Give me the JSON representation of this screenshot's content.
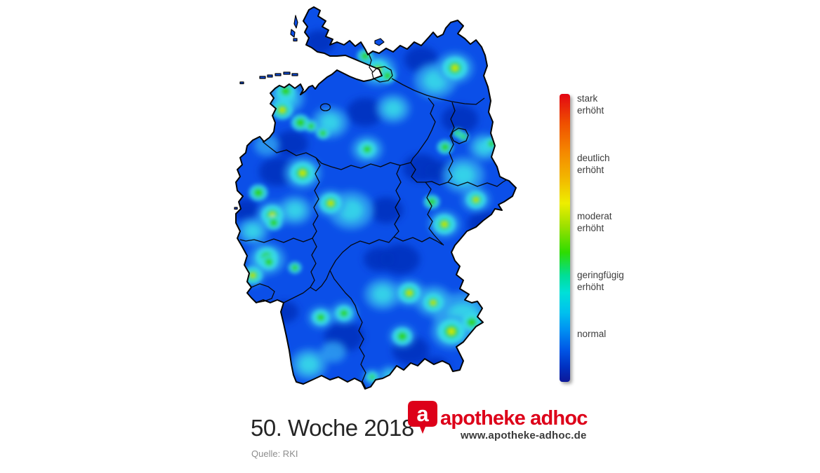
{
  "legend": {
    "levels": [
      {
        "label": "stark\nerhöht",
        "color": "#e30613"
      },
      {
        "label": "deutlich\nerhöht",
        "color": "#f2bb00"
      },
      {
        "label": "moderat\nerhöht",
        "color": "#5bdc00"
      },
      {
        "label": "geringfügig\nerhöht",
        "color": "#00dfca"
      },
      {
        "label": "normal",
        "color": "#0071ee"
      }
    ],
    "gradient_stops": [
      "#e30613 0%",
      "#ef4e00 10%",
      "#f58700 20%",
      "#f2bb00 30%",
      "#eeee00 38%",
      "#9ce000 46%",
      "#2edc00 55%",
      "#00de96 63%",
      "#00e0d8 69%",
      "#00c0ee 76%",
      "#0090f2 82%",
      "#0055e6 89%",
      "#0030c0 95%",
      "#0d1898 100%"
    ]
  },
  "footer": {
    "week_label": "50. Woche 2018",
    "source": "Quelle: RKI"
  },
  "brand": {
    "icon_letter": "a",
    "name": "apotheke adhoc",
    "url": "www.apotheke-adhoc.de",
    "red": "#dd0019"
  },
  "map": {
    "region": "Deutschland",
    "base_color": "#0b4fe8",
    "outline_color": "#050505",
    "dark_color": "#0531bf",
    "light_color": "#2f9ff0",
    "cyan_color": "#37dce8",
    "green_color": "#2ed41c",
    "yellow_color": "#e6ee00",
    "dark_patches": [
      [
        137,
        52,
        22
      ],
      [
        282,
        77,
        24
      ],
      [
        202,
        152,
        26
      ],
      [
        337,
        162,
        26
      ],
      [
        97,
        197,
        24
      ],
      [
        77,
        237,
        26
      ],
      [
        32,
        292,
        20
      ],
      [
        282,
        232,
        26
      ],
      [
        307,
        237,
        20
      ],
      [
        232,
        292,
        24
      ],
      [
        252,
        362,
        28
      ],
      [
        222,
        362,
        22
      ],
      [
        372,
        312,
        24
      ],
      [
        172,
        472,
        28
      ],
      [
        267,
        492,
        26
      ],
      [
        87,
        437,
        20
      ],
      [
        302,
        517,
        20
      ]
    ],
    "light_patches": [
      [
        302,
        107,
        30,
        1
      ],
      [
        242,
        147,
        24,
        1
      ],
      [
        152,
        167,
        26,
        1
      ],
      [
        89,
        132,
        26,
        1
      ],
      [
        205,
        205,
        22,
        1
      ],
      [
        342,
        242,
        30,
        1
      ],
      [
        372,
        202,
        22,
        1
      ],
      [
        182,
        292,
        32,
        1
      ],
      [
        102,
        292,
        24,
        1
      ],
      [
        42,
        322,
        22,
        1
      ],
      [
        62,
        362,
        26,
        1
      ],
      [
        227,
        412,
        26,
        1
      ],
      [
        342,
        445,
        42,
        1
      ],
      [
        300,
        422,
        26,
        1
      ],
      [
        122,
        512,
        26,
        1
      ],
      [
        157,
        494,
        18,
        0
      ],
      [
        42,
        385,
        16,
        1
      ],
      [
        330,
        89,
        26,
        1
      ],
      [
        220,
        92,
        26,
        1
      ],
      [
        113,
        239,
        26,
        1
      ],
      [
        153,
        282,
        22,
        1
      ],
      [
        70,
        299,
        22,
        1
      ],
      [
        315,
        312,
        22,
        1
      ],
      [
        325,
        465,
        28,
        1
      ],
      [
        265,
        410,
        22,
        1
      ],
      [
        139,
        445,
        18,
        1
      ],
      [
        172,
        439,
        18,
        1
      ],
      [
        360,
        277,
        20,
        1
      ],
      [
        255,
        472,
        18,
        1
      ],
      [
        62,
        199,
        18,
        0
      ],
      [
        237,
        527,
        14,
        1
      ],
      [
        212,
        530,
        12,
        1
      ]
    ],
    "hotspots": [
      [
        220,
        92,
        8,
        1
      ],
      [
        202,
        72,
        6,
        0
      ],
      [
        234,
        100,
        6,
        0
      ],
      [
        330,
        89,
        9,
        1
      ],
      [
        89,
        122,
        7,
        0
      ],
      [
        84,
        149,
        8,
        1
      ],
      [
        110,
        167,
        7,
        0
      ],
      [
        125,
        172,
        5,
        0
      ],
      [
        142,
        182,
        5,
        0
      ],
      [
        205,
        205,
        6,
        0
      ],
      [
        316,
        202,
        6,
        0
      ],
      [
        382,
        197,
        5,
        0
      ],
      [
        334,
        182,
        4,
        0
      ],
      [
        342,
        187,
        4,
        0
      ],
      [
        50,
        267,
        7,
        0
      ],
      [
        70,
        299,
        8,
        1
      ],
      [
        72,
        310,
        6,
        0
      ],
      [
        113,
        239,
        9,
        1
      ],
      [
        153,
        282,
        8,
        1
      ],
      [
        297,
        280,
        6,
        0
      ],
      [
        360,
        277,
        7,
        1
      ],
      [
        315,
        312,
        8,
        1
      ],
      [
        62,
        359,
        8,
        0
      ],
      [
        65,
        366,
        6,
        0
      ],
      [
        42,
        385,
        7,
        1
      ],
      [
        102,
        374,
        5,
        0
      ],
      [
        265,
        410,
        8,
        1
      ],
      [
        299,
        424,
        7,
        1
      ],
      [
        325,
        465,
        10,
        1
      ],
      [
        255,
        472,
        7,
        0
      ],
      [
        354,
        452,
        7,
        0
      ],
      [
        139,
        445,
        6,
        0
      ],
      [
        172,
        439,
        6,
        0
      ],
      [
        212,
        530,
        4,
        0
      ],
      [
        227,
        547,
        3,
        0
      ]
    ]
  }
}
